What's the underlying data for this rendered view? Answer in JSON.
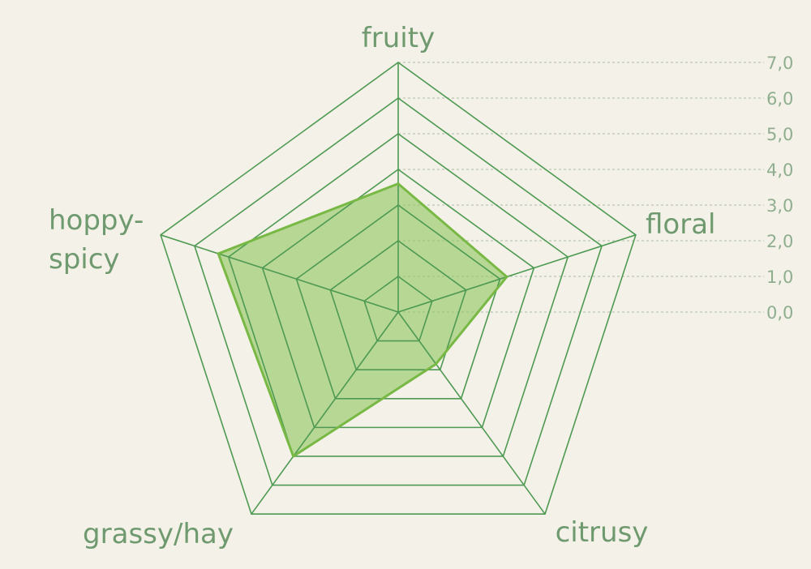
{
  "chart_data": {
    "type": "radar",
    "categories": [
      "fruity",
      "floral",
      "citrusy",
      "grassy/hay",
      "hoppy-spicy"
    ],
    "values": [
      3.6,
      3.2,
      1.8,
      5.0,
      5.3
    ],
    "rlim": [
      0,
      7
    ],
    "ticks": [
      "0,0",
      "1,0",
      "2,0",
      "3,0",
      "4,0",
      "5,0",
      "6,0",
      "7,0"
    ],
    "tick_values": [
      0,
      1,
      2,
      3,
      4,
      5,
      6,
      7
    ],
    "grid": true,
    "colors": {
      "grid": "#4e9a52",
      "fill": "#8dc65e",
      "stroke": "#78b845",
      "label": "#6f9a6f",
      "tick": "#8fae8f",
      "background": "#f4f1e8"
    }
  }
}
